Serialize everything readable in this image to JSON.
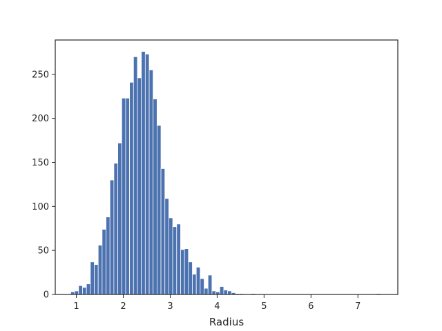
{
  "chart_data": {
    "type": "bar",
    "subtype": "histogram",
    "xlabel": "Radius",
    "ylabel": "",
    "title": "",
    "xlim": [
      0.55,
      7.85
    ],
    "ylim": [
      0,
      289
    ],
    "xticks": [
      1,
      2,
      3,
      4,
      5,
      6,
      7
    ],
    "yticks": [
      0,
      50,
      100,
      150,
      200,
      250
    ],
    "bar_color": "#4c72b0",
    "grid": false,
    "bin_start": 0.88,
    "bin_width": 0.0836,
    "counts": [
      3,
      4,
      10,
      8,
      12,
      37,
      34,
      56,
      74,
      88,
      130,
      149,
      172,
      223,
      223,
      241,
      270,
      246,
      276,
      273,
      255,
      222,
      192,
      143,
      109,
      87,
      77,
      80,
      51,
      52,
      37,
      23,
      31,
      18,
      7,
      22,
      4,
      3,
      9,
      5,
      4,
      2,
      1,
      1,
      0,
      0,
      1,
      0,
      0,
      0,
      0,
      0,
      0,
      0,
      0,
      0,
      0,
      0,
      0,
      0,
      0,
      0,
      0,
      0,
      0,
      0,
      0,
      0,
      0,
      0,
      0,
      0,
      0,
      0,
      0,
      0,
      0,
      0,
      1
    ]
  }
}
